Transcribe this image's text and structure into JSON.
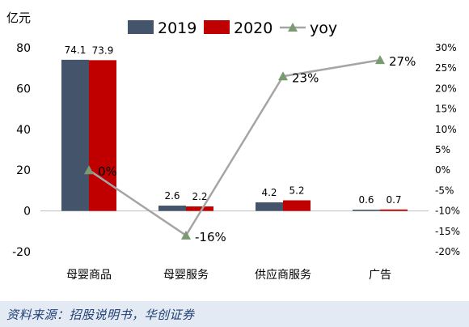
{
  "chart_data": {
    "type": "bar",
    "ylabel": "亿元",
    "categories": [
      "母婴商品",
      "母婴服务",
      "供应商服务",
      "广告"
    ],
    "series": [
      {
        "name": "2019",
        "type": "bar",
        "axis": "left",
        "color": "#44546a",
        "values": [
          74.1,
          2.6,
          4.2,
          0.6
        ],
        "labels": [
          "74.1",
          "2.6",
          "4.2",
          "0.6"
        ]
      },
      {
        "name": "2020",
        "type": "bar",
        "axis": "left",
        "color": "#c00000",
        "values": [
          73.9,
          2.2,
          5.2,
          0.7
        ],
        "labels": [
          "73.9",
          "2.2",
          "5.2",
          "0.7"
        ]
      },
      {
        "name": "yoy",
        "type": "line",
        "axis": "right",
        "color": "#a5a5a5",
        "marker_color": "#7a9a6f",
        "values": [
          0,
          -16,
          23,
          27
        ],
        "labels": [
          "0%",
          "-16%",
          "23%",
          "27%"
        ]
      }
    ],
    "y_left": {
      "min": -20,
      "max": 80,
      "ticks": [
        "80",
        "60",
        "40",
        "20",
        "0",
        "-20"
      ]
    },
    "y_right": {
      "min": -20,
      "max": 30,
      "ticks": [
        "30%",
        "25%",
        "20%",
        "15%",
        "10%",
        "5%",
        "0%",
        "-5%",
        "-10%",
        "-15%",
        "-20%"
      ]
    },
    "grid": false,
    "legend": "top"
  },
  "source": "资料来源：招股说明书，华创证券"
}
